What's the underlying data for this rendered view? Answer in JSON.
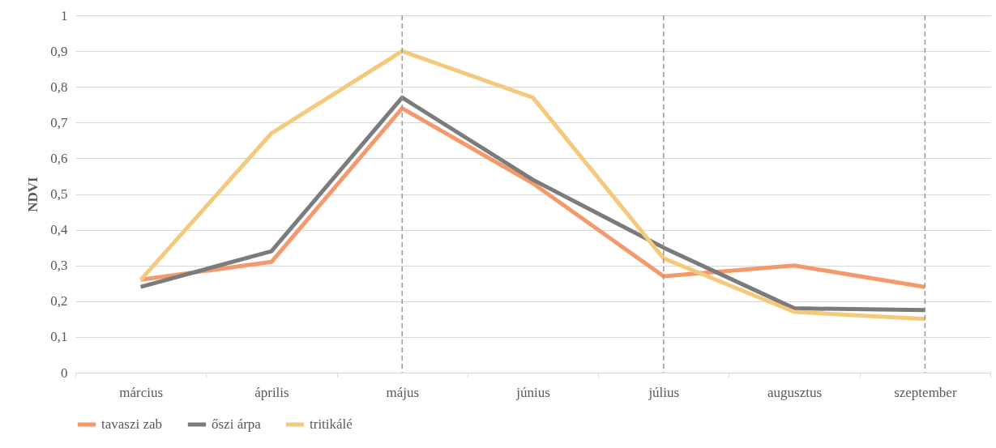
{
  "chart_data": {
    "type": "line",
    "ylabel": "NDVI",
    "categories": [
      "március",
      "április",
      "május",
      "június",
      "július",
      "augusztus",
      "szeptember"
    ],
    "series": [
      {
        "name": "tavaszi zab",
        "color": "#f4996b",
        "values": [
          0.26,
          0.31,
          0.74,
          0.53,
          0.27,
          0.3,
          0.24
        ]
      },
      {
        "name": "őszi árpa",
        "color": "#7b7b7b",
        "values": [
          0.24,
          0.34,
          0.77,
          0.54,
          0.35,
          0.18,
          0.175
        ]
      },
      {
        "name": "tritikálé",
        "color": "#f5c97b",
        "values": [
          0.26,
          0.67,
          0.9,
          0.77,
          0.32,
          0.17,
          0.15
        ]
      }
    ],
    "ylim": [
      0,
      1
    ],
    "yticks": [
      {
        "value": 0,
        "label": "0"
      },
      {
        "value": 0.1,
        "label": "0,1"
      },
      {
        "value": 0.2,
        "label": "0,2"
      },
      {
        "value": 0.3,
        "label": "0,3"
      },
      {
        "value": 0.4,
        "label": "0,4"
      },
      {
        "value": 0.5,
        "label": "0,5"
      },
      {
        "value": 0.6,
        "label": "0,6"
      },
      {
        "value": 0.7,
        "label": "0,7"
      },
      {
        "value": 0.8,
        "label": "0,8"
      },
      {
        "value": 0.9,
        "label": "0,9"
      },
      {
        "value": 1,
        "label": "1"
      }
    ],
    "ref_lines": [
      {
        "axis": "x",
        "value": "május",
        "color": "#999999",
        "line_style": "dashed"
      },
      {
        "axis": "x",
        "value": "július",
        "color": "#999999",
        "line_style": "dashed"
      },
      {
        "axis": "x",
        "value": "szeptember",
        "color": "#999999",
        "line_style": "dashed"
      }
    ],
    "grid": "y",
    "legend": "bottom",
    "marker": "none",
    "line_style": "solid"
  }
}
